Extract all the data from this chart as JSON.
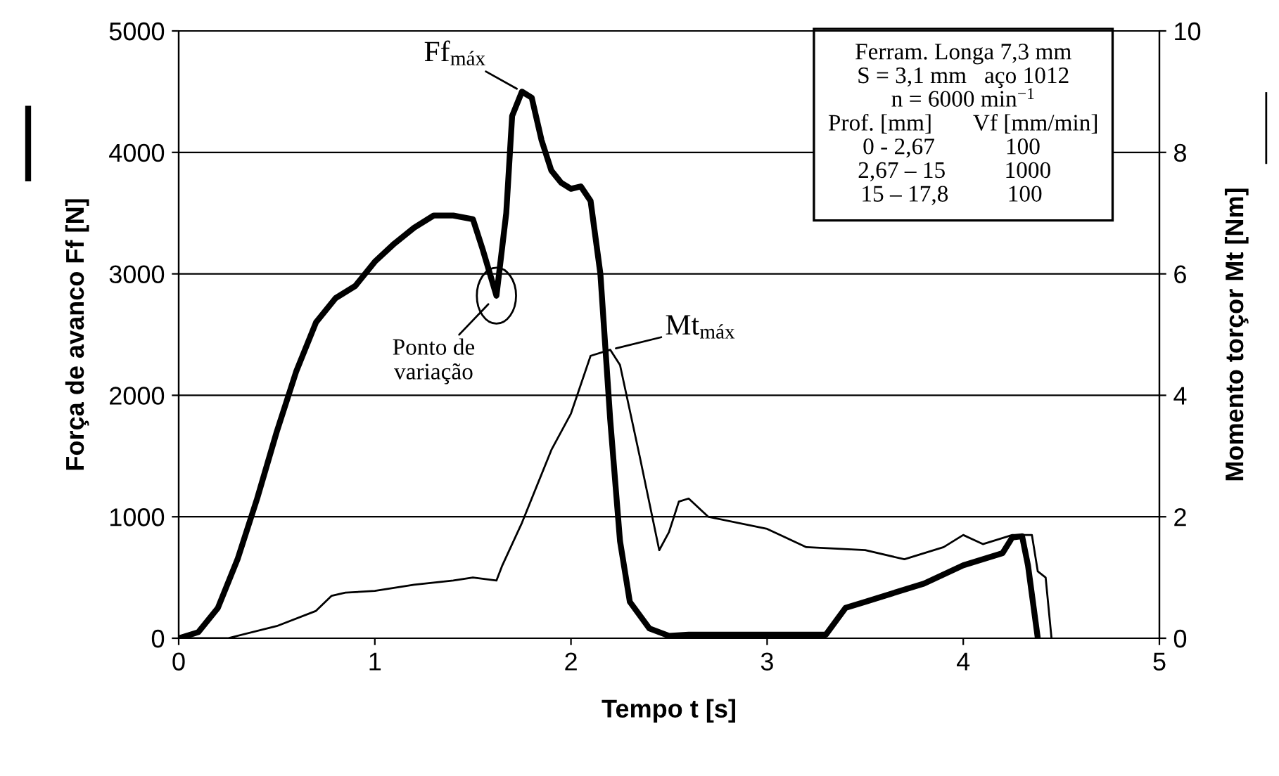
{
  "chart_data": {
    "type": "line",
    "xlabel": "Tempo t [s]",
    "ylabel": "Força de avanco Ff [N]",
    "y2label": "Momento torçor Mt [Nm]",
    "xlim": [
      0,
      5
    ],
    "xticks": [
      0,
      1,
      2,
      3,
      4,
      5
    ],
    "ylim": [
      0,
      5000
    ],
    "yticks": [
      0,
      1000,
      2000,
      3000,
      4000,
      5000
    ],
    "y2lim": [
      0,
      10
    ],
    "y2ticks": [
      0,
      2,
      4,
      6,
      8,
      10
    ],
    "grid": "y",
    "marker": "none",
    "line_style": "solid",
    "series": [
      {
        "color": "#000000",
        "x": [
          0,
          0.1,
          0.2,
          0.3,
          0.4,
          0.5,
          0.6,
          0.7,
          0.8,
          0.9,
          1.0,
          1.1,
          1.2,
          1.3,
          1.4,
          1.5,
          1.55,
          1.62,
          1.67,
          1.7,
          1.75,
          1.8,
          1.85,
          1.9,
          1.95,
          2.0,
          2.05,
          2.1,
          2.15,
          2.2,
          2.25,
          2.3,
          2.4,
          2.5,
          2.6,
          3.0,
          3.3,
          3.4,
          3.5,
          3.8,
          4.0,
          4.2,
          4.25,
          4.3,
          4.33,
          4.38
        ],
        "values": [
          0,
          50,
          250,
          650,
          1150,
          1700,
          2200,
          2600,
          2800,
          2900,
          3100,
          3250,
          3380,
          3480,
          3480,
          3450,
          3200,
          2820,
          3500,
          4300,
          4500,
          4450,
          4100,
          3850,
          3750,
          3700,
          3720,
          3600,
          3000,
          1800,
          800,
          300,
          80,
          20,
          30,
          30,
          30,
          250,
          300,
          450,
          600,
          700,
          830,
          840,
          600,
          0
        ]
      },
      {
        "color": "#000000",
        "axis": "y2",
        "x": [
          0,
          0.25,
          0.5,
          0.7,
          0.78,
          0.85,
          1.0,
          1.2,
          1.4,
          1.5,
          1.62,
          1.65,
          1.75,
          1.9,
          2.0,
          2.1,
          2.2,
          2.25,
          2.35,
          2.45,
          2.5,
          2.55,
          2.6,
          2.7,
          3.0,
          3.2,
          3.5,
          3.7,
          3.9,
          4.0,
          4.1,
          4.25,
          4.35,
          4.38,
          4.42,
          4.45
        ],
        "values": [
          0,
          0,
          0.2,
          0.45,
          0.7,
          0.75,
          0.78,
          0.88,
          0.95,
          1.0,
          0.95,
          1.2,
          1.9,
          3.1,
          3.7,
          4.65,
          4.75,
          4.5,
          3.0,
          1.45,
          1.75,
          2.25,
          2.3,
          2.0,
          1.8,
          1.5,
          1.45,
          1.3,
          1.5,
          1.7,
          1.55,
          1.7,
          1.7,
          1.1,
          1.0,
          0
        ]
      }
    ],
    "annotations": [
      {
        "text": "Ff$_{máx}$",
        "x": 1.75,
        "y": 4500
      },
      {
        "text": "Mt$_{máx}$",
        "x": 2.2,
        "y": 2375
      },
      {
        "text": "Ponto de\nvariação",
        "x": 1.62,
        "y": 2820
      },
      "Ferram. Longa 7,3 mm\nS = 3,1 mm   aço 1012\nn = 6000 min$^{−1}$\nProf. [mm]       Vf [mm/min]\n0 - 2,67            100    \n2,67 – 15          1000   \n15 – 17,8          100    "
    ]
  }
}
